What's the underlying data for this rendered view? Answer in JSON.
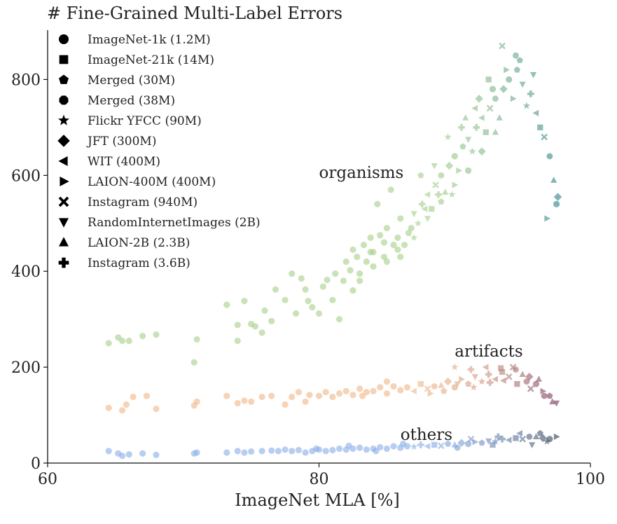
{
  "chart_data": {
    "type": "scatter",
    "title": "# Fine-Grained Multi-Label Errors",
    "xlabel": "ImageNet MLA [%]",
    "ylabel": "",
    "xlim": [
      60,
      100
    ],
    "ylim": [
      0,
      900
    ],
    "xticks": [
      "60",
      "80",
      "100"
    ],
    "yticks": [
      "0",
      "200",
      "400",
      "600",
      "800"
    ],
    "grid": false,
    "legend_position": "top-left",
    "legend": [
      {
        "label": "ImageNet-1k (1.2M)",
        "marker": "circle"
      },
      {
        "label": "ImageNet-21k (14M)",
        "marker": "square"
      },
      {
        "label": "Merged (30M)",
        "marker": "pentagon"
      },
      {
        "label": "Merged (38M)",
        "marker": "octagon"
      },
      {
        "label": "Flickr YFCC (90M)",
        "marker": "star"
      },
      {
        "label": "JFT (300M)",
        "marker": "diamond"
      },
      {
        "label": "WIT (400M)",
        "marker": "triangle-left"
      },
      {
        "label": "LAION-400M (400M)",
        "marker": "triangle-right"
      },
      {
        "label": "Instagram (940M)",
        "marker": "x-filled"
      },
      {
        "label": "RandomInternetImages (2B)",
        "marker": "triangle-down"
      },
      {
        "label": "LAION-2B (2.3B)",
        "marker": "triangle-up"
      },
      {
        "label": "Instagram (3.6B)",
        "marker": "plus-filled"
      }
    ],
    "annotations": [
      {
        "text": "organisms",
        "x": 80.0,
        "y": 595
      },
      {
        "text": "artifacts",
        "x": 90.0,
        "y": 222
      },
      {
        "text": "others",
        "x": 86.0,
        "y": 48
      }
    ],
    "series": [
      {
        "name": "organisms",
        "color_low": "#a8d08d",
        "color_high": "#2a7f8a",
        "points": [
          [
            64.5,
            250
          ],
          [
            65.2,
            262
          ],
          [
            65.5,
            255
          ],
          [
            66.0,
            255
          ],
          [
            67.0,
            265
          ],
          [
            68.0,
            268
          ],
          [
            70.8,
            210
          ],
          [
            71.0,
            258
          ],
          [
            73.2,
            330
          ],
          [
            74.0,
            288
          ],
          [
            74.0,
            255
          ],
          [
            74.5,
            338
          ],
          [
            75.0,
            290
          ],
          [
            75.3,
            285
          ],
          [
            75.8,
            272
          ],
          [
            76.0,
            318
          ],
          [
            76.5,
            296
          ],
          [
            76.8,
            362
          ],
          [
            77.5,
            340
          ],
          [
            78.0,
            395
          ],
          [
            78.3,
            312
          ],
          [
            78.7,
            385
          ],
          [
            79.0,
            362
          ],
          [
            79.2,
            338
          ],
          [
            79.5,
            325
          ],
          [
            80.0,
            312
          ],
          [
            80.3,
            368
          ],
          [
            80.6,
            382
          ],
          [
            81.0,
            340
          ],
          [
            81.2,
            395
          ],
          [
            81.5,
            300
          ],
          [
            81.8,
            380
          ],
          [
            82.0,
            420
          ],
          [
            82.3,
            402
          ],
          [
            82.5,
            445
          ],
          [
            82.8,
            430
          ],
          [
            83.0,
            395
          ],
          [
            83.3,
            455
          ],
          [
            83.5,
            420
          ],
          [
            83.8,
            470
          ],
          [
            84.0,
            440
          ],
          [
            84.3,
            540
          ],
          [
            84.5,
            475
          ],
          [
            84.8,
            430
          ],
          [
            85.0,
            490
          ],
          [
            85.3,
            570
          ],
          [
            85.5,
            455
          ],
          [
            85.8,
            470
          ],
          [
            86.0,
            510
          ],
          [
            86.3,
            455
          ],
          [
            86.6,
            480
          ],
          [
            87.0,
            520
          ],
          [
            87.3,
            500
          ],
          [
            87.6,
            540
          ],
          [
            88.0,
            560
          ],
          [
            88.3,
            530
          ],
          [
            88.6,
            580
          ],
          [
            89.0,
            600
          ],
          [
            89.3,
            565
          ],
          [
            89.6,
            620
          ],
          [
            90.0,
            640
          ],
          [
            90.3,
            610
          ],
          [
            90.6,
            660
          ],
          [
            91.0,
            675
          ],
          [
            91.3,
            650
          ],
          [
            91.6,
            700
          ],
          [
            92.0,
            720
          ],
          [
            92.3,
            690
          ],
          [
            92.6,
            740
          ],
          [
            93.0,
            760
          ],
          [
            93.3,
            720
          ],
          [
            93.6,
            780
          ],
          [
            94.0,
            800
          ],
          [
            94.3,
            760
          ],
          [
            94.6,
            820
          ],
          [
            95.0,
            790
          ],
          [
            95.3,
            745
          ],
          [
            95.6,
            770
          ],
          [
            96.0,
            730
          ],
          [
            96.3,
            700
          ],
          [
            96.6,
            680
          ],
          [
            97.0,
            640
          ],
          [
            97.3,
            590
          ],
          [
            97.6,
            555
          ],
          [
            97.5,
            540
          ],
          [
            96.8,
            510
          ],
          [
            87.5,
            600
          ],
          [
            88.5,
            620
          ],
          [
            89.5,
            680
          ],
          [
            90.5,
            700
          ],
          [
            91.5,
            740
          ],
          [
            92.5,
            800
          ],
          [
            93.5,
            870
          ],
          [
            94.5,
            850
          ],
          [
            93.0,
            690
          ],
          [
            92.0,
            650
          ],
          [
            91.0,
            610
          ],
          [
            90.0,
            580
          ],
          [
            89.0,
            545
          ],
          [
            88.0,
            510
          ],
          [
            87.0,
            470
          ],
          [
            86.0,
            430
          ],
          [
            85.0,
            420
          ],
          [
            84.0,
            410
          ],
          [
            83.0,
            380
          ],
          [
            82.5,
            360
          ],
          [
            90.8,
            720
          ],
          [
            91.8,
            760
          ],
          [
            92.8,
            780
          ],
          [
            93.8,
            820
          ],
          [
            94.8,
            840
          ],
          [
            95.8,
            810
          ],
          [
            89.8,
            560
          ],
          [
            88.8,
            560
          ],
          [
            87.8,
            530
          ],
          [
            86.8,
            490
          ],
          [
            85.8,
            445
          ],
          [
            84.8,
            460
          ],
          [
            83.8,
            440
          ]
        ]
      },
      {
        "name": "artifacts",
        "color_low": "#f0b88a",
        "color_high": "#6b2d5c",
        "points": [
          [
            64.5,
            115
          ],
          [
            65.5,
            110
          ],
          [
            65.8,
            122
          ],
          [
            66.3,
            138
          ],
          [
            67.3,
            140
          ],
          [
            68.0,
            113
          ],
          [
            70.8,
            120
          ],
          [
            71.0,
            128
          ],
          [
            73.2,
            140
          ],
          [
            74.0,
            125
          ],
          [
            74.5,
            130
          ],
          [
            75.0,
            128
          ],
          [
            75.8,
            138
          ],
          [
            76.5,
            140
          ],
          [
            77.5,
            122
          ],
          [
            78.0,
            138
          ],
          [
            78.5,
            148
          ],
          [
            79.0,
            128
          ],
          [
            79.3,
            142
          ],
          [
            80.0,
            140
          ],
          [
            80.5,
            148
          ],
          [
            81.0,
            138
          ],
          [
            81.5,
            145
          ],
          [
            82.0,
            150
          ],
          [
            82.5,
            142
          ],
          [
            83.0,
            155
          ],
          [
            83.5,
            148
          ],
          [
            84.0,
            150
          ],
          [
            84.5,
            158
          ],
          [
            85.0,
            145
          ],
          [
            85.5,
            160
          ],
          [
            86.0,
            152
          ],
          [
            86.5,
            158
          ],
          [
            87.0,
            150
          ],
          [
            87.5,
            165
          ],
          [
            88.0,
            155
          ],
          [
            88.5,
            160
          ],
          [
            89.0,
            162
          ],
          [
            89.5,
            170
          ],
          [
            90.0,
            158
          ],
          [
            90.5,
            175
          ],
          [
            91.0,
            165
          ],
          [
            91.5,
            180
          ],
          [
            92.0,
            170
          ],
          [
            92.5,
            185
          ],
          [
            93.0,
            175
          ],
          [
            93.5,
            190
          ],
          [
            94.0,
            180
          ],
          [
            94.5,
            195
          ],
          [
            95.0,
            185
          ],
          [
            95.5,
            180
          ],
          [
            96.0,
            165
          ],
          [
            96.5,
            150
          ],
          [
            97.0,
            140
          ],
          [
            97.5,
            125
          ],
          [
            90.0,
            200
          ],
          [
            91.2,
            195
          ],
          [
            92.3,
            200
          ],
          [
            93.4,
            198
          ],
          [
            94.3,
            200
          ],
          [
            95.3,
            170
          ],
          [
            96.2,
            175
          ],
          [
            85.0,
            170
          ],
          [
            83.2,
            140
          ],
          [
            88.2,
            145
          ],
          [
            89.2,
            150
          ],
          [
            90.2,
            165
          ],
          [
            91.4,
            158
          ],
          [
            92.6,
            168
          ],
          [
            93.6,
            172
          ],
          [
            94.6,
            165
          ],
          [
            95.6,
            155
          ],
          [
            96.6,
            140
          ],
          [
            97.2,
            128
          ]
        ]
      },
      {
        "name": "others",
        "color_low": "#8ab0e8",
        "color_high": "#2f3a4a",
        "points": [
          [
            64.5,
            25
          ],
          [
            65.2,
            20
          ],
          [
            65.5,
            15
          ],
          [
            66.0,
            18
          ],
          [
            67.0,
            20
          ],
          [
            68.0,
            17
          ],
          [
            70.8,
            20
          ],
          [
            71.0,
            22
          ],
          [
            73.2,
            22
          ],
          [
            74.0,
            25
          ],
          [
            74.5,
            22
          ],
          [
            75.0,
            24
          ],
          [
            75.8,
            25
          ],
          [
            76.5,
            26
          ],
          [
            77.0,
            25
          ],
          [
            77.5,
            28
          ],
          [
            78.0,
            25
          ],
          [
            78.5,
            27
          ],
          [
            79.0,
            22
          ],
          [
            79.5,
            25
          ],
          [
            80.0,
            28
          ],
          [
            80.5,
            25
          ],
          [
            81.0,
            27
          ],
          [
            81.5,
            30
          ],
          [
            82.0,
            28
          ],
          [
            82.5,
            30
          ],
          [
            83.0,
            32
          ],
          [
            83.5,
            28
          ],
          [
            84.0,
            30
          ],
          [
            84.5,
            33
          ],
          [
            85.0,
            30
          ],
          [
            85.5,
            35
          ],
          [
            86.0,
            32
          ],
          [
            86.5,
            35
          ],
          [
            87.0,
            34
          ],
          [
            87.5,
            38
          ],
          [
            88.0,
            35
          ],
          [
            88.5,
            38
          ],
          [
            89.0,
            36
          ],
          [
            89.5,
            40
          ],
          [
            90.0,
            38
          ],
          [
            90.5,
            42
          ],
          [
            91.0,
            40
          ],
          [
            91.5,
            44
          ],
          [
            92.0,
            42
          ],
          [
            92.5,
            46
          ],
          [
            93.0,
            45
          ],
          [
            93.5,
            50
          ],
          [
            94.0,
            48
          ],
          [
            94.5,
            52
          ],
          [
            95.0,
            50
          ],
          [
            95.5,
            55
          ],
          [
            96.0,
            55
          ],
          [
            96.5,
            52
          ],
          [
            97.0,
            50
          ],
          [
            97.5,
            55
          ],
          [
            96.3,
            62
          ],
          [
            95.7,
            38
          ],
          [
            96.8,
            45
          ],
          [
            93.2,
            55
          ],
          [
            94.8,
            62
          ],
          [
            92.8,
            38
          ],
          [
            91.2,
            50
          ],
          [
            90.2,
            32
          ],
          [
            86.2,
            40
          ],
          [
            84.2,
            25
          ],
          [
            82.2,
            36
          ],
          [
            79.8,
            30
          ]
        ]
      }
    ]
  }
}
